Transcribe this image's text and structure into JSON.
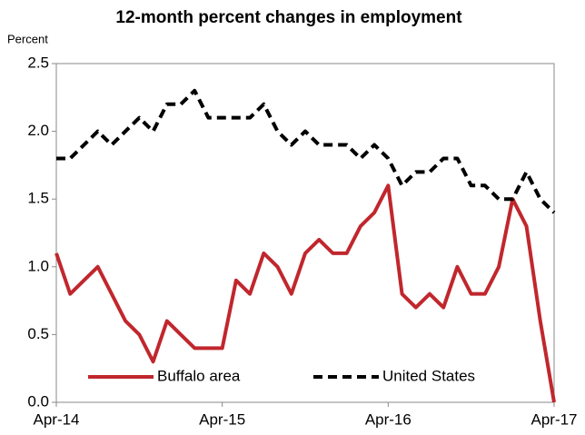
{
  "chart_data": {
    "type": "line",
    "title": "12-month percent changes in employment",
    "y_label": "Percent",
    "categories": [
      "Apr-14",
      null,
      null,
      null,
      null,
      null,
      null,
      null,
      null,
      null,
      null,
      null,
      "Apr-15",
      null,
      null,
      null,
      null,
      null,
      null,
      null,
      null,
      null,
      null,
      null,
      "Apr-16",
      null,
      null,
      null,
      null,
      null,
      null,
      null,
      null,
      null,
      null,
      null,
      "Apr-17"
    ],
    "series": [
      {
        "name": "Buffalo area",
        "color": "#c0272d",
        "line_style": "solid",
        "values": [
          1.1,
          0.8,
          0.9,
          1.0,
          0.8,
          0.6,
          0.5,
          0.3,
          0.6,
          0.5,
          0.4,
          0.4,
          0.4,
          0.9,
          0.8,
          1.1,
          1.0,
          0.8,
          1.1,
          1.2,
          1.1,
          1.1,
          1.3,
          1.4,
          1.6,
          0.8,
          0.7,
          0.8,
          0.7,
          1.0,
          0.8,
          0.8,
          1.0,
          1.5,
          1.3,
          0.6,
          0.0
        ]
      },
      {
        "name": "United States",
        "color": "#000000",
        "line_style": "dashed",
        "values": [
          1.8,
          1.8,
          1.9,
          2.0,
          1.9,
          2.0,
          2.1,
          2.0,
          2.2,
          2.2,
          2.3,
          2.1,
          2.1,
          2.1,
          2.1,
          2.2,
          2.0,
          1.9,
          2.0,
          1.9,
          1.9,
          1.9,
          1.8,
          1.9,
          1.8,
          1.6,
          1.7,
          1.7,
          1.8,
          1.8,
          1.6,
          1.6,
          1.5,
          1.5,
          1.7,
          1.5,
          1.4
        ]
      }
    ],
    "ylim": [
      0,
      2.5
    ],
    "yticks": [
      {
        "value": 0,
        "label": "0.0"
      },
      0.5,
      {
        "value": 1,
        "label": "1.0"
      },
      1.5,
      {
        "value": 2,
        "label": "2.0"
      },
      2.5
    ],
    "grid": false,
    "legend": "bottom"
  }
}
